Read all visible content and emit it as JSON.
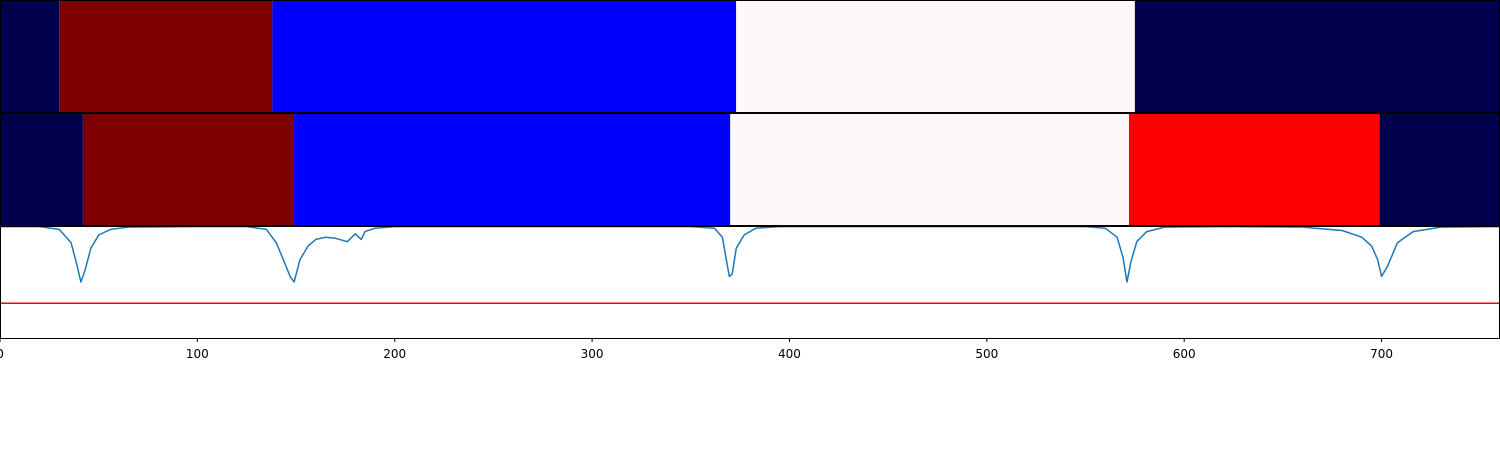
{
  "chart_data": [
    {
      "type": "segment-strip",
      "name": "",
      "xlim": [
        0,
        760
      ],
      "segments": [
        {
          "start": 0,
          "end": 30,
          "color": "#00004d"
        },
        {
          "start": 30,
          "end": 138,
          "color": "#7f0000"
        },
        {
          "start": 138,
          "end": 373,
          "color": "#0000ff"
        },
        {
          "start": 373,
          "end": 575,
          "color": "#fff8fa"
        },
        {
          "start": 575,
          "end": 760,
          "color": "#00004d"
        }
      ]
    },
    {
      "type": "segment-strip",
      "name": "",
      "xlim": [
        0,
        760
      ],
      "segments": [
        {
          "start": 0,
          "end": 42,
          "color": "#00004d"
        },
        {
          "start": 42,
          "end": 149,
          "color": "#7f0000"
        },
        {
          "start": 149,
          "end": 370,
          "color": "#0000ff"
        },
        {
          "start": 370,
          "end": 572,
          "color": "#fff8fa"
        },
        {
          "start": 572,
          "end": 699,
          "color": "#ff0000"
        },
        {
          "start": 699,
          "end": 760,
          "color": "#00004d"
        }
      ]
    },
    {
      "type": "line",
      "xlim": [
        0,
        760
      ],
      "ylim": [
        0,
        1
      ],
      "xticks": [
        0,
        100,
        200,
        300,
        400,
        500,
        600,
        700
      ],
      "threshold": {
        "value": 0.31,
        "color": "#ff0000"
      },
      "series": [
        {
          "color": "#1f77b4",
          "x": [
            0,
            20,
            30,
            36,
            39,
            41,
            43,
            46,
            50,
            56,
            65,
            100,
            125,
            135,
            140,
            144,
            147,
            149,
            152,
            156,
            160,
            165,
            170,
            176,
            180,
            183,
            185,
            190,
            200,
            300,
            350,
            362,
            366,
            368,
            369.5,
            371,
            373,
            377,
            383,
            395,
            500,
            550,
            560,
            566,
            569,
            571,
            573,
            576,
            581,
            590,
            620,
            660,
            680,
            690,
            695,
            698,
            700,
            703,
            708,
            716,
            730,
            760
          ],
          "y": [
            0.995,
            0.995,
            0.97,
            0.85,
            0.65,
            0.5,
            0.6,
            0.8,
            0.92,
            0.97,
            0.99,
            0.995,
            0.995,
            0.97,
            0.85,
            0.68,
            0.55,
            0.5,
            0.7,
            0.82,
            0.88,
            0.9,
            0.89,
            0.86,
            0.93,
            0.88,
            0.95,
            0.98,
            0.995,
            0.995,
            0.995,
            0.98,
            0.9,
            0.7,
            0.55,
            0.57,
            0.8,
            0.92,
            0.98,
            0.995,
            0.995,
            0.995,
            0.98,
            0.9,
            0.72,
            0.5,
            0.68,
            0.86,
            0.95,
            0.99,
            0.995,
            0.99,
            0.96,
            0.9,
            0.82,
            0.7,
            0.55,
            0.64,
            0.85,
            0.95,
            0.99,
            0.995
          ]
        }
      ]
    }
  ]
}
